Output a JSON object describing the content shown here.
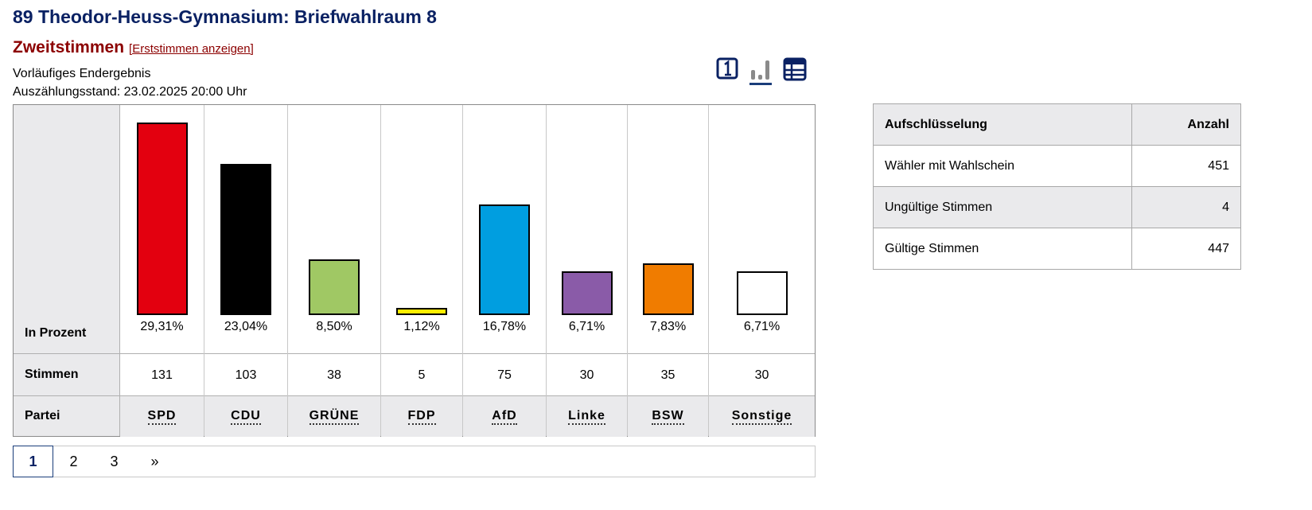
{
  "header": {
    "title": "89 Theodor-Heuss-Gymnasium: Briefwahlraum 8",
    "vote_type": "Zweitstimmen",
    "toggle_link": "[Erststimmen anzeigen]",
    "status_line1": "Vorläufiges Endergebnis",
    "status_line2": "Auszählungsstand: 23.02.2025 20:00 Uhr"
  },
  "view_icons": [
    "number-one-icon",
    "bar-chart-icon",
    "table-icon"
  ],
  "row_labels": {
    "percent": "In Prozent",
    "votes": "Stimmen",
    "party": "Partei"
  },
  "chart_data": {
    "type": "bar",
    "categories": [
      "SPD",
      "CDU",
      "GRÜNE",
      "FDP",
      "AfD",
      "Linke",
      "BSW",
      "Sonstige"
    ],
    "series": [
      {
        "values": [
          29.31,
          23.04,
          8.5,
          1.12,
          16.78,
          6.71,
          7.83,
          6.71
        ]
      }
    ],
    "value_labels": [
      "29,31%",
      "23,04%",
      "8,50%",
      "1,12%",
      "16,78%",
      "6,71%",
      "7,83%",
      "6,71%"
    ],
    "votes": [
      "131",
      "103",
      "38",
      "5",
      "75",
      "30",
      "35",
      "30"
    ],
    "colors": [
      "#e3000f",
      "#000000",
      "#a0c864",
      "#ffed00",
      "#009ee0",
      "#8a5ba8",
      "#f07c00",
      "#ffffff"
    ],
    "ylim": [
      0,
      30
    ],
    "grid": false
  },
  "pagination": {
    "pages": [
      "1",
      "2",
      "3"
    ],
    "next": "»",
    "current": "1"
  },
  "breakdown": {
    "headers": [
      "Aufschlüsselung",
      "Anzahl"
    ],
    "rows": [
      {
        "label": "Wähler mit Wahlschein",
        "value": "451"
      },
      {
        "label": "Ungültige Stimmen",
        "value": "4"
      },
      {
        "label": "Gültige Stimmen",
        "value": "447"
      }
    ]
  }
}
